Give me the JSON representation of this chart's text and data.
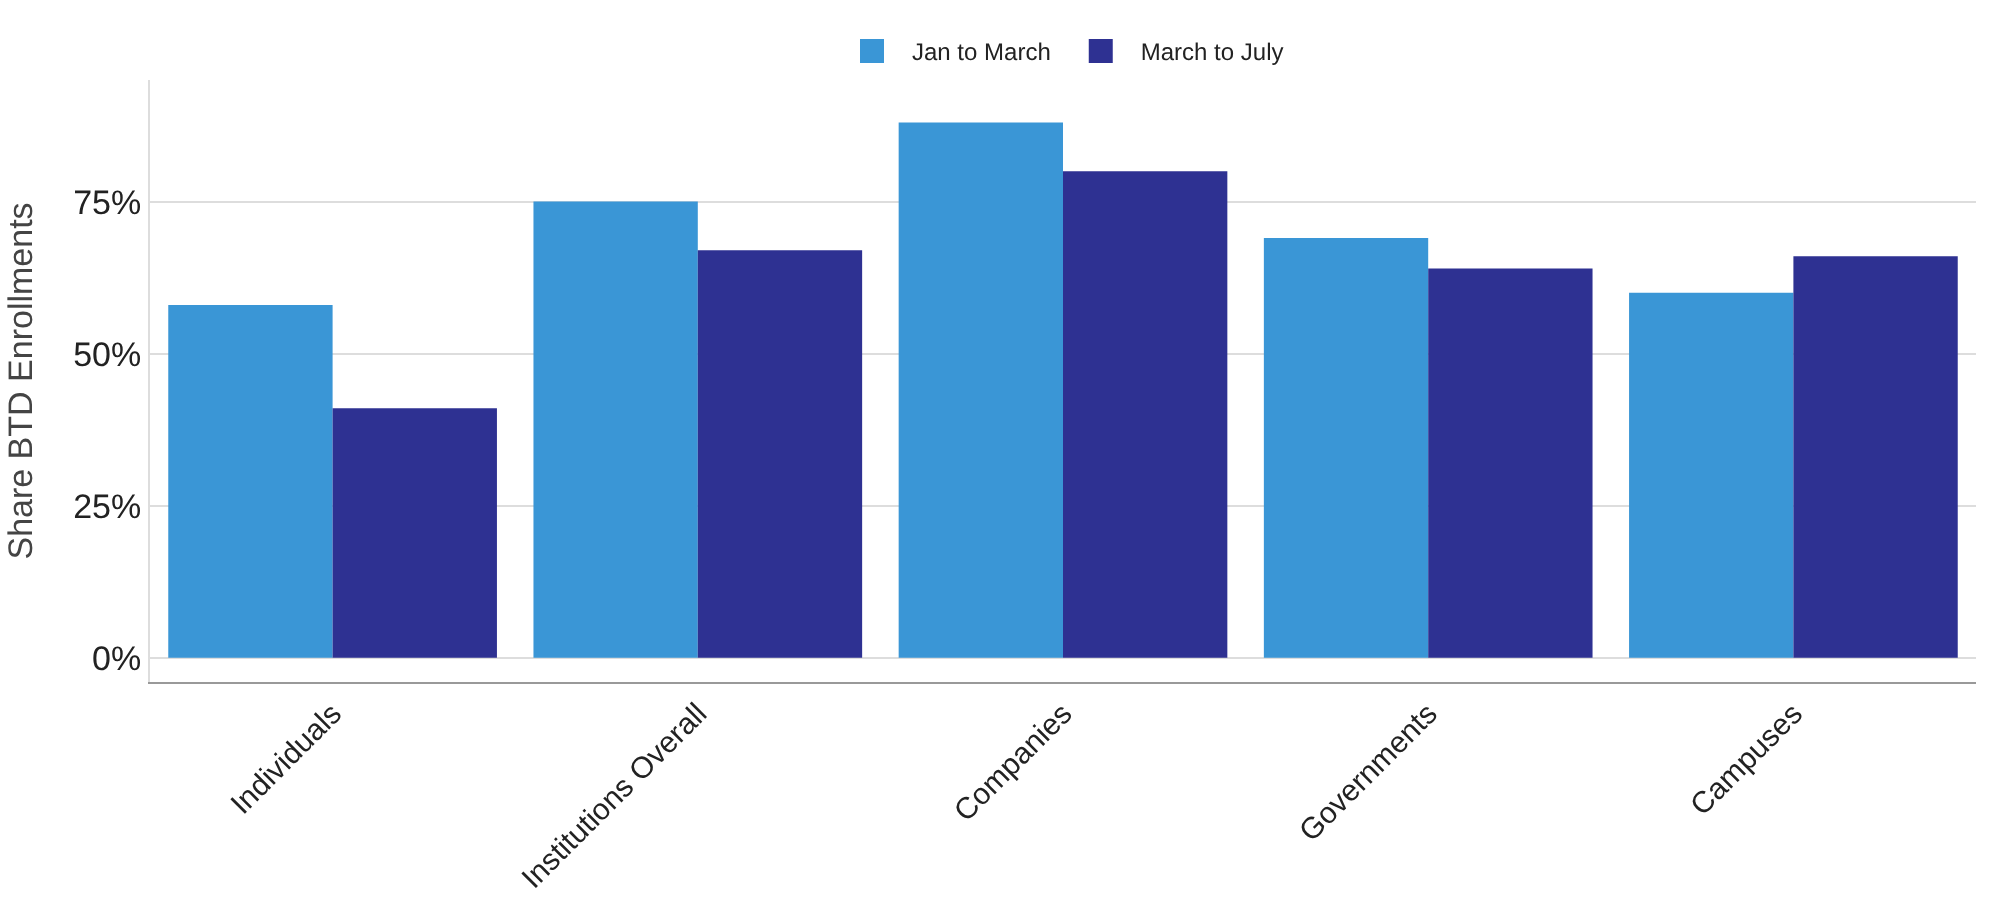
{
  "chart_data": {
    "type": "bar",
    "ylabel": "Share BTD Enrollments",
    "categories": [
      "Individuals",
      "Institutions Overall",
      "Companies",
      "Governments",
      "Campuses"
    ],
    "series": [
      {
        "name": "Jan to March",
        "color": "#3a96d6",
        "values": [
          58,
          75,
          88,
          69,
          60
        ]
      },
      {
        "name": "March to July",
        "color": "#2e3192",
        "values": [
          41,
          67,
          80,
          64,
          66
        ]
      }
    ],
    "ylim": [
      -4,
      95
    ],
    "yticks": [
      {
        "value": 0,
        "label": "0%"
      },
      {
        "value": 25,
        "label": "25%"
      },
      {
        "value": 50,
        "label": "50%"
      },
      {
        "value": 75,
        "label": "75%"
      }
    ],
    "grid": "y",
    "legend": "top"
  }
}
